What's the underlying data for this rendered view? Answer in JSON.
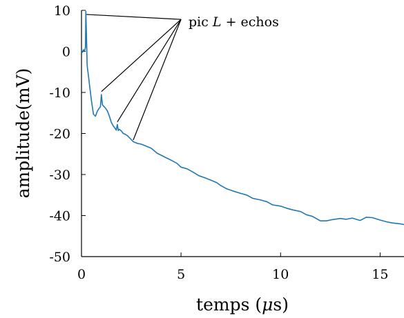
{
  "chart_data": {
    "type": "line",
    "xlabel_prefix": "temps (",
    "xlabel_symbol": "μ",
    "xlabel_suffix": "s)",
    "ylabel": "amplitude(mV)",
    "annotation": {
      "prefix": "pic ",
      "symbol": "L",
      "suffix": " + echos",
      "pointer_targets": [
        [
          0.25,
          9.0
        ],
        [
          1.0,
          -9.8
        ],
        [
          1.8,
          -17.2
        ],
        [
          2.6,
          -21.6
        ]
      ],
      "anchor": [
        5.0,
        7.8
      ]
    },
    "xlim": [
      0,
      16.2
    ],
    "ylim": [
      -50,
      10
    ],
    "xticks": [
      0,
      5,
      10,
      15
    ],
    "xtick_labels": [
      "0",
      "5",
      "10",
      "15"
    ],
    "yticks": [
      10,
      0,
      -10,
      -20,
      -30,
      -40,
      -50
    ],
    "ytick_labels": [
      "10",
      "0",
      "-10",
      "-20",
      "-30",
      "-40",
      "-50"
    ],
    "grid": false,
    "color": "#1f77b4",
    "series": [
      {
        "x": [
          0.0,
          0.05,
          0.1,
          0.15,
          0.2,
          0.22,
          0.25,
          0.28,
          0.3,
          0.35,
          0.4,
          0.5,
          0.6,
          0.7,
          0.8,
          0.9,
          0.95,
          1.0,
          1.05,
          1.1,
          1.2,
          1.3,
          1.4,
          1.5,
          1.6,
          1.7,
          1.75,
          1.8,
          1.85,
          1.9,
          2.0,
          2.1,
          2.2,
          2.3,
          2.4,
          2.5,
          2.6,
          2.7,
          2.8,
          3.0,
          3.2,
          3.5,
          3.8,
          4.0,
          4.2,
          4.5,
          4.8,
          5.0,
          5.3,
          5.6,
          5.9,
          6.2,
          6.5,
          6.8,
          7.0,
          7.3,
          7.6,
          8.0,
          8.3,
          8.6,
          9.0,
          9.3,
          9.6,
          10.0,
          10.3,
          10.6,
          11.0,
          11.3,
          11.6,
          12.0,
          12.3,
          12.6,
          13.0,
          13.3,
          13.6,
          14.0,
          14.3,
          14.6,
          15.0,
          15.3,
          15.6,
          16.0,
          16.2
        ],
        "y": [
          0.3,
          -0.2,
          0.4,
          0.0,
          1.0,
          9.8,
          4.0,
          -3.0,
          -4.0,
          -6.0,
          -8.0,
          -12.0,
          -15.3,
          -15.8,
          -14.5,
          -13.8,
          -13.5,
          -10.5,
          -13.0,
          -13.3,
          -13.8,
          -14.5,
          -15.8,
          -17.3,
          -18.2,
          -18.8,
          -19.2,
          -17.8,
          -19.3,
          -19.0,
          -19.4,
          -20.0,
          -20.2,
          -20.5,
          -21.0,
          -21.5,
          -22.0,
          -22.2,
          -22.4,
          -22.6,
          -23.0,
          -23.6,
          -24.8,
          -25.3,
          -25.8,
          -26.5,
          -27.3,
          -28.2,
          -28.6,
          -29.4,
          -30.3,
          -30.8,
          -31.4,
          -32.0,
          -32.7,
          -33.5,
          -34.0,
          -34.6,
          -35.0,
          -35.8,
          -36.2,
          -36.6,
          -37.4,
          -37.7,
          -38.2,
          -38.6,
          -39.0,
          -39.8,
          -40.2,
          -41.3,
          -41.3,
          -41.0,
          -40.7,
          -40.9,
          -40.6,
          -41.2,
          -40.4,
          -40.5,
          -41.1,
          -41.5,
          -41.8,
          -42.0,
          -42.2
        ]
      }
    ]
  }
}
